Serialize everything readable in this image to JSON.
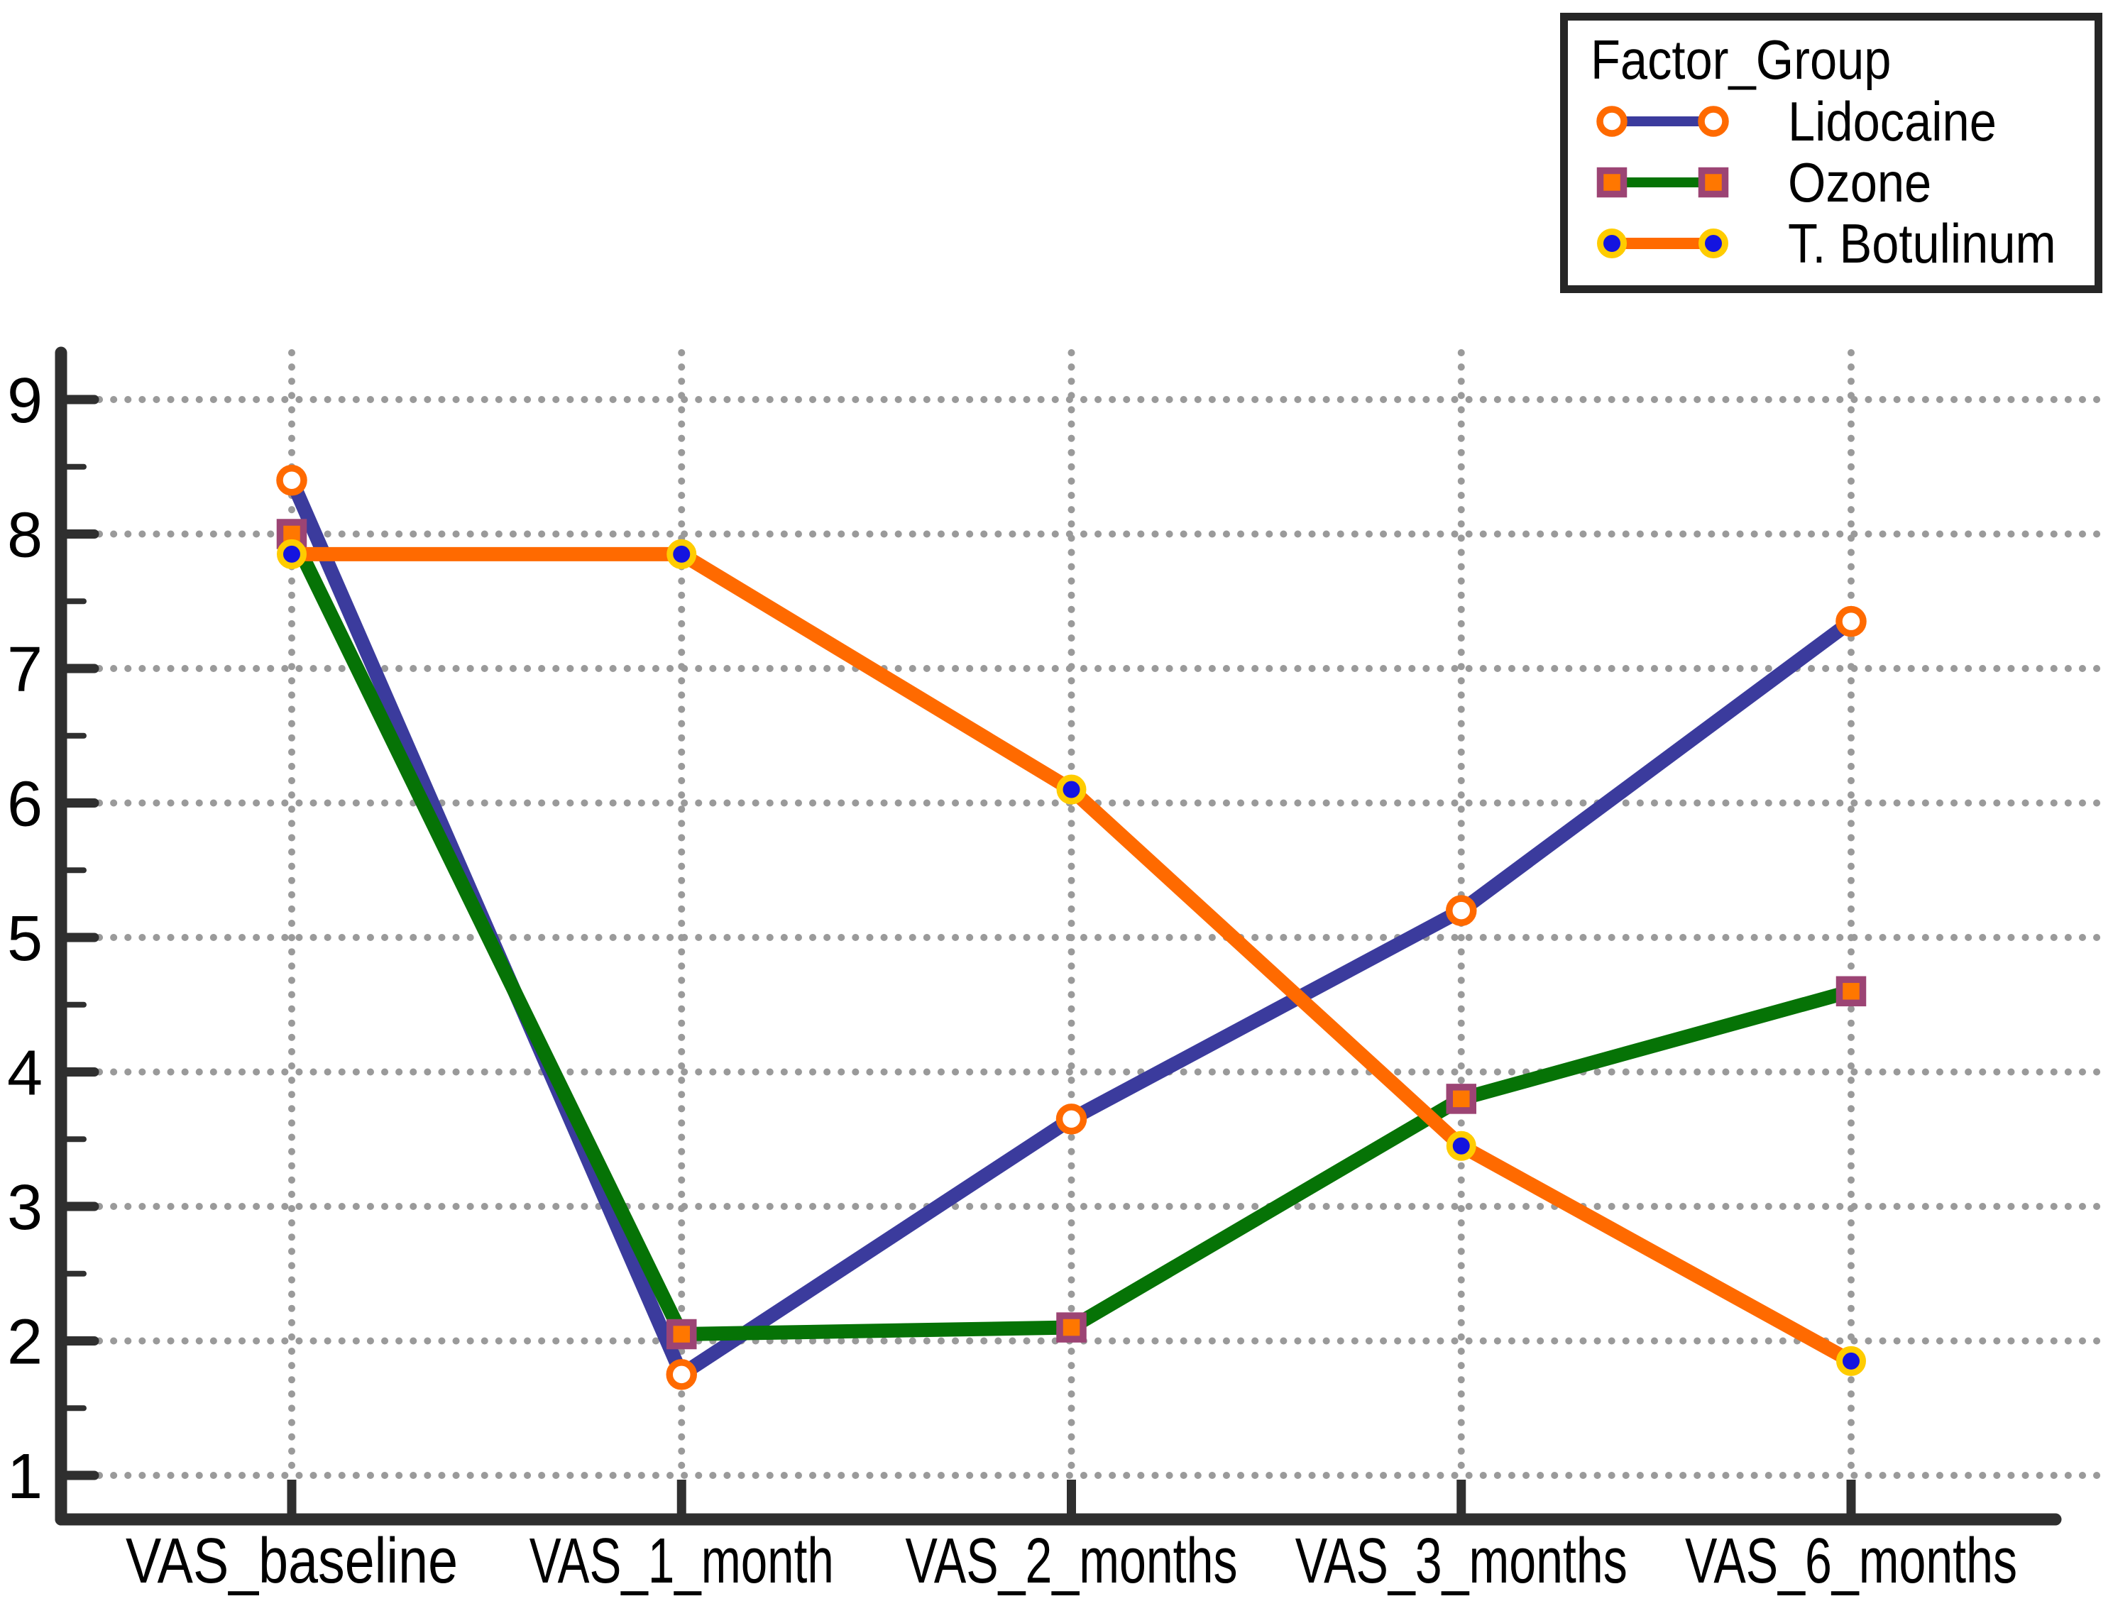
{
  "window": {
    "background": "#FFFFFF"
  },
  "legend": {
    "title": "Factor_Group",
    "position": "top-right"
  },
  "chart_data": {
    "type": "line",
    "title": "",
    "xlabel": "",
    "ylabel": "",
    "categories": [
      "VAS_baseline",
      "VAS_1_month",
      "VAS_2_months",
      "VAS_3_months",
      "VAS_6_months"
    ],
    "series": [
      {
        "name": "Lidocaine",
        "values": [
          8.4,
          1.75,
          3.65,
          5.2,
          7.35
        ],
        "line_color": "#3B3B9D",
        "marker": "open-circle",
        "marker_fill": "#FFFFFF",
        "marker_edge": "#FF6A00"
      },
      {
        "name": "Ozone",
        "values": [
          8.0,
          2.05,
          2.1,
          3.8,
          4.6
        ],
        "line_color": "#067306",
        "marker": "square",
        "marker_fill": "#FF7700",
        "marker_edge": "#9C4474"
      },
      {
        "name": "T. Botulinum",
        "values": [
          7.85,
          7.85,
          6.1,
          3.45,
          1.85
        ],
        "line_color": "#FF6A00",
        "marker": "filled-circle",
        "marker_fill": "#1414E0",
        "marker_edge": "#FFCC00"
      }
    ],
    "ylim": [
      1,
      9
    ],
    "yticks": [
      1,
      2,
      3,
      4,
      5,
      6,
      7,
      8,
      9
    ],
    "minor_ytick_step": 0.5,
    "grid": "dotted",
    "grid_color": "#9A9A9A",
    "axis_color": "#2F2F2F",
    "text_color": "#000000",
    "legend_position": "top-right"
  }
}
